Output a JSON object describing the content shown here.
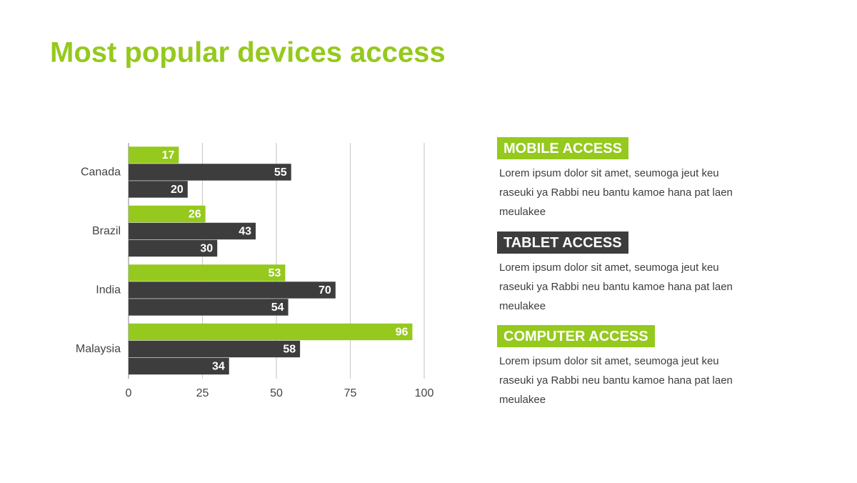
{
  "chart_data": {
    "type": "hbar",
    "title": "Most popular devices access",
    "categories": [
      "Canada",
      "Brazil",
      "India",
      "Malaysia"
    ],
    "series": [
      {
        "color": "#95c91d",
        "values": [
          17,
          26,
          53,
          96
        ]
      },
      {
        "color": "#3d3d3d",
        "values": [
          55,
          43,
          70,
          58
        ]
      },
      {
        "color": "#3d3d3d",
        "values": [
          20,
          30,
          54,
          34
        ]
      }
    ],
    "xlim": [
      0,
      100
    ],
    "xticks": [
      0,
      25,
      50,
      75,
      100
    ],
    "grid": true
  },
  "panels": [
    {
      "heading": "MOBILE ACCESS",
      "color": "#95c91d",
      "body": "Lorem ipsum dolor sit amet, seumoga jeut keu raseuki ya Rabbi neu bantu kamoe hana pat laen meulakee"
    },
    {
      "heading": "TABLET ACCESS",
      "color": "#3d3d3d",
      "body": "Lorem ipsum dolor sit amet, seumoga jeut keu raseuki ya Rabbi neu bantu kamoe hana pat laen meulakee"
    },
    {
      "heading": "COMPUTER ACCESS",
      "color": "#95c91d",
      "body": "Lorem ipsum dolor sit amet, seumoga jeut keu raseuki ya Rabbi neu bantu kamoe hana pat laen meulakee"
    }
  ]
}
